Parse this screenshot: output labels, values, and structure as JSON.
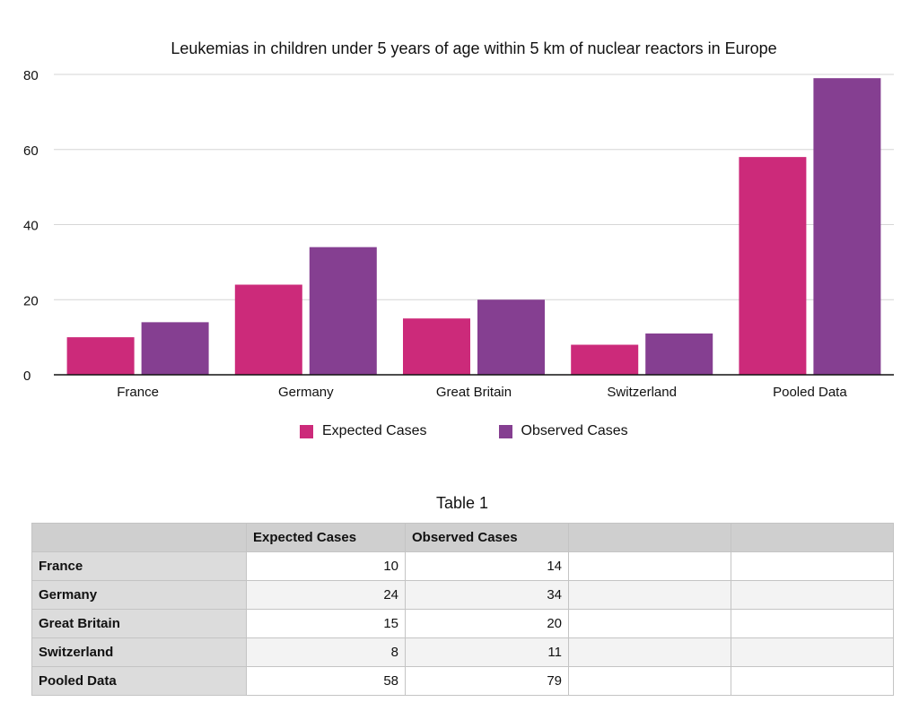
{
  "chart_data": {
    "type": "bar",
    "title": "Leukemias in children under 5 years of age within 5 km of nuclear reactors in Europe",
    "categories": [
      "France",
      "Germany",
      "Great Britain",
      "Switzerland",
      "Pooled Data"
    ],
    "series": [
      {
        "name": "Expected Cases",
        "values": [
          10,
          24,
          15,
          8,
          58
        ],
        "color": "#cc2a7a"
      },
      {
        "name": "Observed Cases",
        "values": [
          14,
          34,
          20,
          11,
          79
        ],
        "color": "#853f91"
      }
    ],
    "ylim": [
      0,
      80
    ],
    "yticks": [
      "0",
      "20",
      "40",
      "60",
      "80"
    ],
    "grid": true,
    "legend": "bottom"
  },
  "table": {
    "title": "Table 1",
    "headers": [
      "",
      "Expected Cases",
      "Observed Cases",
      "",
      ""
    ],
    "rows": [
      {
        "label": "France",
        "expected": "10",
        "observed": "14"
      },
      {
        "label": "Germany",
        "expected": "24",
        "observed": "34"
      },
      {
        "label": "Great Britain",
        "expected": "15",
        "observed": "20"
      },
      {
        "label": "Switzerland",
        "expected": "8",
        "observed": "11"
      },
      {
        "label": "Pooled Data",
        "expected": "58",
        "observed": "79"
      }
    ]
  }
}
